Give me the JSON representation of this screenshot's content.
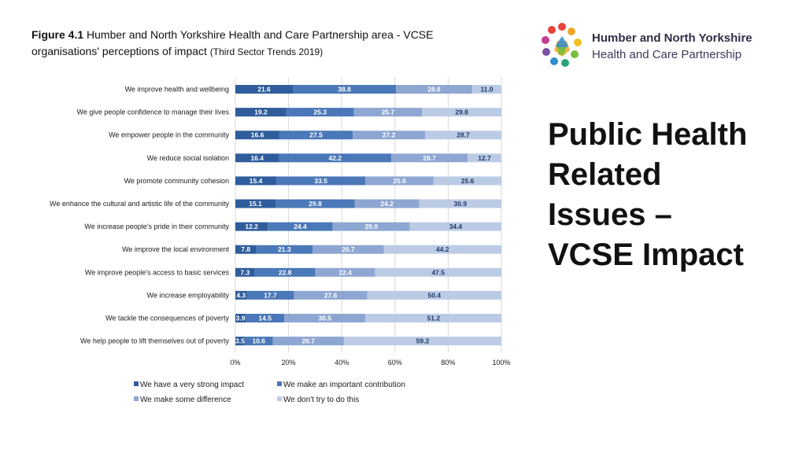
{
  "caption": {
    "figure_label": "Figure 4.1",
    "text": "Humber and North Yorkshire Health and Care Partnership area - VCSE organisations' perceptions of impact",
    "source": "(Third Sector Trends 2019)"
  },
  "logo": {
    "line1": "Humber and North Yorkshire",
    "line2": "Health and Care Partnership"
  },
  "heading": {
    "line1": "Public Health",
    "line2": "Related",
    "line3": "Issues –",
    "line4": "VCSE Impact"
  },
  "colors": {
    "very_strong": "#2f5d9c",
    "important": "#4a78b8",
    "some": "#8ea6d2",
    "dont_try": "#bccbe5",
    "text_dark": "#ffffff",
    "text_light": "#1f3a66"
  },
  "chart_data": {
    "type": "bar",
    "orientation": "horizontal",
    "stacked": true,
    "categories": [
      "We improve health and wellbeing",
      "We give people confidence to manage their lives",
      "We empower people in the community",
      "We reduce social isolation",
      "We promote community cohesion",
      "We enhance the cultural and artistic life of the community",
      "We increase people's pride in their community",
      "We improve the local environment",
      "We improve people's access to basic services",
      "We increase employability",
      "We tackle the consequences of poverty",
      "We help people to lift themselves out of poverty"
    ],
    "series": [
      {
        "name": "We have a very strong impact",
        "values": [
          21.6,
          19.2,
          16.6,
          16.4,
          15.4,
          15.1,
          12.2,
          7.8,
          7.3,
          4.3,
          3.9,
          3.5
        ]
      },
      {
        "name": "We make an important contribution",
        "values": [
          38.8,
          25.3,
          27.5,
          42.2,
          33.5,
          29.8,
          24.4,
          21.3,
          22.8,
          17.7,
          14.5,
          10.6
        ]
      },
      {
        "name": "We make some difference",
        "values": [
          28.6,
          25.7,
          27.2,
          28.7,
          25.6,
          24.2,
          29.0,
          26.7,
          22.4,
          27.6,
          30.5,
          26.7
        ]
      },
      {
        "name": "We don't try to do this",
        "values": [
          11.0,
          29.8,
          28.7,
          12.7,
          25.6,
          30.9,
          34.4,
          44.2,
          47.5,
          50.4,
          51.2,
          59.2
        ]
      }
    ],
    "x_ticks": [
      "0%",
      "20%",
      "40%",
      "60%",
      "80%",
      "100%"
    ],
    "xlim": [
      0,
      100
    ],
    "grid": true,
    "legend_position": "bottom"
  }
}
